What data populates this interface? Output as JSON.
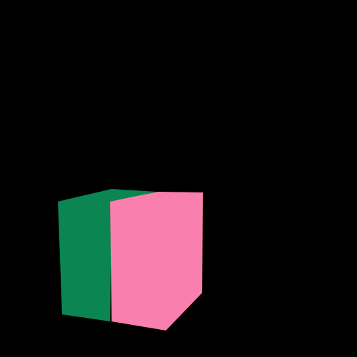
{
  "scene": {
    "background_color": "#000000",
    "objects": [
      {
        "name": "box",
        "shape": "cuboid",
        "faces": [
          {
            "name": "left-face",
            "color": "#0B8552"
          },
          {
            "name": "front-face",
            "color": "#F97FAE"
          },
          {
            "name": "shadow-face",
            "color": "#000000"
          }
        ]
      }
    ]
  }
}
